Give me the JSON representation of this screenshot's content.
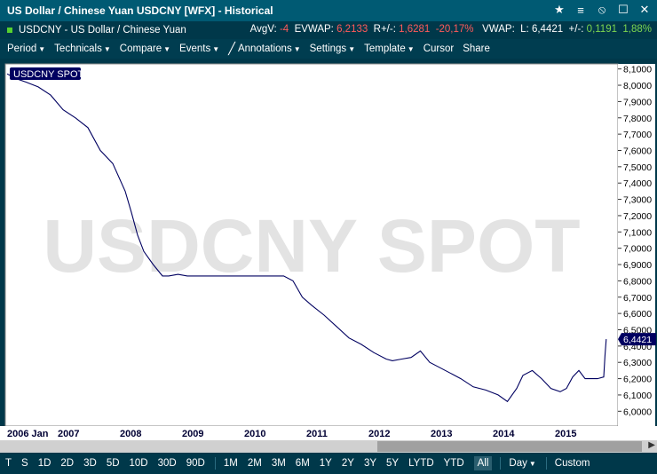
{
  "window": {
    "title": "US Dollar / Chinese Yuan USDCNY [WFX] - Historical"
  },
  "info": {
    "instrument": "USDCNY - US Dollar / Chinese Yuan",
    "avgv_label": "AvgV:",
    "avgv_value": "-4",
    "evwap_label": "EVWAP:",
    "evwap_value": "6,2133",
    "r_label": "R+/-:",
    "r_value": "1,6281",
    "r_pct": "-20,17%",
    "vwap_label": "VWAP:",
    "last_label": "L:",
    "last_value": "6,4421",
    "chg_label": "+/-:",
    "chg_value": "0,1191",
    "chg_pct": "1,88%"
  },
  "menu": {
    "period": "Period",
    "technicals": "Technicals",
    "compare": "Compare",
    "events": "Events",
    "annotations": "Annotations",
    "settings": "Settings",
    "template": "Template",
    "cursor": "Cursor",
    "share": "Share"
  },
  "chart_data": {
    "type": "line",
    "title": "USDCNY SPOT",
    "watermark": "USDCNY SPOT",
    "series": [
      {
        "name": "USDCNY SPOT",
        "x": [
          2006.0,
          2006.15,
          2006.3,
          2006.5,
          2006.7,
          2006.9,
          2007.1,
          2007.3,
          2007.5,
          2007.7,
          2007.9,
          2008.0,
          2008.1,
          2008.2,
          2008.35,
          2008.5,
          2008.6,
          2008.75,
          2008.9,
          2009.1,
          2009.5,
          2009.9,
          2010.3,
          2010.45,
          2010.6,
          2010.75,
          2010.9,
          2011.1,
          2011.3,
          2011.5,
          2011.7,
          2011.9,
          2012.1,
          2012.2,
          2012.35,
          2012.5,
          2012.65,
          2012.8,
          2012.95,
          2013.1,
          2013.3,
          2013.5,
          2013.7,
          2013.9,
          2014.05,
          2014.2,
          2014.3,
          2014.45,
          2014.6,
          2014.75,
          2014.9,
          2015.0,
          2015.1,
          2015.2,
          2015.3,
          2015.35,
          2015.5,
          2015.6,
          2015.62,
          2015.64
        ],
        "values": [
          8.07,
          8.04,
          8.02,
          7.99,
          7.94,
          7.85,
          7.8,
          7.74,
          7.6,
          7.52,
          7.35,
          7.22,
          7.08,
          6.98,
          6.9,
          6.83,
          6.83,
          6.84,
          6.83,
          6.83,
          6.83,
          6.83,
          6.83,
          6.83,
          6.8,
          6.7,
          6.65,
          6.59,
          6.52,
          6.45,
          6.41,
          6.36,
          6.32,
          6.31,
          6.32,
          6.33,
          6.37,
          6.3,
          6.27,
          6.24,
          6.2,
          6.15,
          6.13,
          6.1,
          6.06,
          6.14,
          6.22,
          6.25,
          6.2,
          6.14,
          6.12,
          6.14,
          6.21,
          6.25,
          6.2,
          6.2,
          6.2,
          6.21,
          6.34,
          6.4421
        ]
      }
    ],
    "ylim": [
      5.92,
      8.12
    ],
    "xlim": [
      2006.0,
      2015.8
    ],
    "y_ticks": [
      "6,0000",
      "6,1000",
      "6,2000",
      "6,3000",
      "6,4000",
      "6,5000",
      "6,6000",
      "6,7000",
      "6,8000",
      "6,9000",
      "7,0000",
      "7,1000",
      "7,2000",
      "7,3000",
      "7,4000",
      "7,5000",
      "7,6000",
      "7,7000",
      "7,8000",
      "7,9000",
      "8,0000",
      "8,1000"
    ],
    "y_tick_values": [
      6.0,
      6.1,
      6.2,
      6.3,
      6.4,
      6.5,
      6.6,
      6.7,
      6.8,
      6.9,
      7.0,
      7.1,
      7.2,
      7.3,
      7.4,
      7.5,
      7.6,
      7.7,
      7.8,
      7.9,
      8.0,
      8.1
    ],
    "x_ticks": [
      "2006 Jan",
      "2007",
      "2008",
      "2009",
      "2010",
      "2011",
      "2012",
      "2013",
      "2014",
      "2015"
    ],
    "x_tick_values": [
      2006.0,
      2007.0,
      2008.0,
      2009.0,
      2010.0,
      2011.0,
      2012.0,
      2013.0,
      2014.0,
      2015.0
    ],
    "last_label": "6,4421",
    "last_value": 6.4421,
    "line_color": "#000060",
    "grid": false,
    "legend": "top-left"
  },
  "periods": {
    "buttons": [
      "T",
      "S",
      "1D",
      "2D",
      "3D",
      "5D",
      "10D",
      "30D",
      "90D"
    ],
    "ranges": [
      "1M",
      "2M",
      "3M",
      "6M",
      "1Y",
      "2Y",
      "3Y",
      "5Y",
      "LYTD",
      "YTD",
      "All"
    ],
    "selected": "All",
    "interval": "Day",
    "custom": "Custom"
  }
}
